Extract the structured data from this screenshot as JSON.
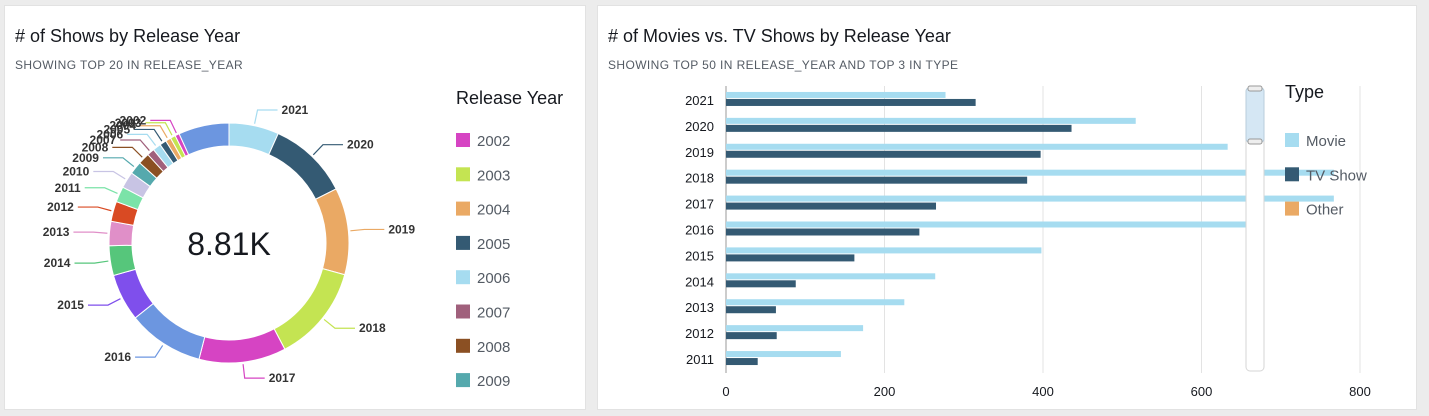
{
  "panels": [
    {
      "title": "# of Shows by Release Year",
      "subtitle": "SHOWING TOP 20 IN RELEASE_YEAR"
    },
    {
      "title": "# of Movies vs. TV Shows by Release Year",
      "subtitle": "SHOWING TOP 50 IN RELEASE_YEAR AND TOP 3 IN TYPE"
    }
  ],
  "chart_data": [
    {
      "type": "pie",
      "center_label": "8.81K",
      "legend_title": "Release Year",
      "legend_placement": "right",
      "slices": [
        {
          "label": "2021",
          "value": 592,
          "color": "#a6dcf0"
        },
        {
          "label": "2020",
          "value": 953,
          "color": "#345a73"
        },
        {
          "label": "2019",
          "value": 1030,
          "color": "#eaa964"
        },
        {
          "label": "2018",
          "value": 1147,
          "color": "#c4e452"
        },
        {
          "label": "2017",
          "value": 1032,
          "color": "#d644c3"
        },
        {
          "label": "2016",
          "value": 902,
          "color": "#6c96e0"
        },
        {
          "label": "2015",
          "value": 560,
          "color": "#7f4fec"
        },
        {
          "label": "2014",
          "value": 352,
          "color": "#56c67b"
        },
        {
          "label": "2013",
          "value": 288,
          "color": "#e08fc8"
        },
        {
          "label": "2012",
          "value": 237,
          "color": "#d94a23"
        },
        {
          "label": "2011",
          "value": 185,
          "color": "#7be3a8"
        },
        {
          "label": "2010",
          "value": 194,
          "color": "#c8c4e4"
        },
        {
          "label": "2009",
          "value": 152,
          "color": "#55a9ad"
        },
        {
          "label": "2008",
          "value": 136,
          "color": "#8b5023"
        },
        {
          "label": "2007",
          "value": 88,
          "color": "#a0607c"
        },
        {
          "label": "2006",
          "value": 96,
          "color": "#a6dcf0"
        },
        {
          "label": "2005",
          "value": 80,
          "color": "#345a73"
        },
        {
          "label": "2004",
          "value": 64,
          "color": "#eaa964"
        },
        {
          "label": "2003",
          "value": 61,
          "color": "#c4e452"
        },
        {
          "label": "2002",
          "value": 51,
          "color": "#d644c3"
        },
        {
          "label": "",
          "value": 600,
          "color": "#6c96e0"
        }
      ],
      "legend_entries": [
        {
          "label": "2002",
          "color": "#d644c3"
        },
        {
          "label": "2003",
          "color": "#c4e452"
        },
        {
          "label": "2004",
          "color": "#eaa964"
        },
        {
          "label": "2005",
          "color": "#345a73"
        },
        {
          "label": "2006",
          "color": "#a6dcf0"
        },
        {
          "label": "2007",
          "color": "#a0607c"
        },
        {
          "label": "2008",
          "color": "#8b5023"
        },
        {
          "label": "2009",
          "color": "#55a9ad"
        }
      ]
    },
    {
      "type": "bar",
      "orientation": "horizontal",
      "categories": [
        "2021",
        "2020",
        "2019",
        "2018",
        "2017",
        "2016",
        "2015",
        "2014",
        "2013",
        "2012",
        "2011"
      ],
      "series": [
        {
          "name": "Movie",
          "color": "#a6dcf0",
          "values": [
            277,
            517,
            633,
            767,
            767,
            658,
            398,
            264,
            225,
            173,
            145
          ]
        },
        {
          "name": "TV Show",
          "color": "#345a73",
          "values": [
            315,
            436,
            397,
            380,
            265,
            244,
            162,
            88,
            63,
            64,
            40
          ]
        },
        {
          "name": "Other",
          "color": "#eaa964",
          "values": [
            0,
            0,
            0,
            0,
            0,
            0,
            0,
            0,
            0,
            0,
            0
          ]
        }
      ],
      "xlim": [
        0,
        800
      ],
      "xticks": [
        "0",
        "200",
        "400",
        "600",
        "800"
      ],
      "grid": true,
      "legend_title": "Type",
      "legend_placement": "right"
    }
  ]
}
